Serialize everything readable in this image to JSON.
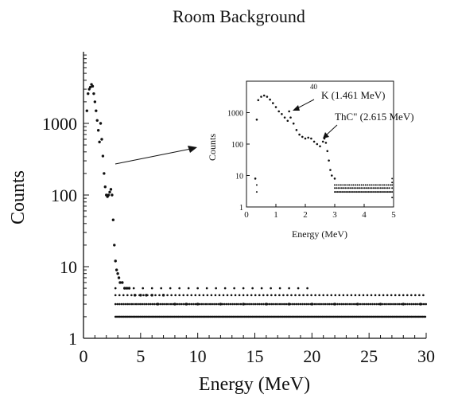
{
  "chart_data": [
    {
      "id": "main",
      "type": "scatter",
      "title": "Room Background",
      "xlabel": "Energy (MeV)",
      "ylabel": "Counts",
      "xlim": [
        0,
        30
      ],
      "ylim": [
        1,
        10000
      ],
      "y_scale": "log",
      "x_ticks": [
        0,
        5,
        10,
        15,
        20,
        25,
        30
      ],
      "y_ticks": [
        1,
        10,
        100,
        1000
      ],
      "y_tick_labels": [
        "1",
        "10",
        "100",
        "1000"
      ],
      "grid": false,
      "series": [
        {
          "values_description_free": true,
          "x": [
            0.3,
            0.4,
            0.5,
            0.6,
            0.7,
            0.8,
            0.9,
            1.0,
            1.1,
            1.2,
            1.3,
            1.4,
            1.5,
            1.6,
            1.7,
            1.8,
            1.9,
            2.0,
            2.1,
            2.2,
            2.3,
            2.4,
            2.5,
            2.6,
            2.7,
            2.8,
            2.9,
            3.0,
            3.1,
            3.2,
            3.4,
            3.6,
            3.8,
            4.0,
            4.5,
            5.0,
            5.5,
            6.0,
            6.5,
            7.0,
            8.0,
            9.0,
            10.0,
            12.0,
            14.0,
            16.0,
            18.0,
            20.0,
            22.0,
            24.0,
            26.0,
            28.0,
            29.5
          ],
          "y": [
            1500,
            2600,
            3000,
            3200,
            3500,
            3300,
            2600,
            2000,
            1500,
            1100,
            800,
            550,
            1000,
            600,
            350,
            200,
            130,
            100,
            95,
            100,
            110,
            120,
            100,
            45,
            20,
            12,
            9,
            8,
            7,
            6,
            6,
            5,
            5,
            5,
            4,
            4,
            4,
            4,
            3,
            4,
            3,
            3,
            3,
            3,
            3,
            3,
            3,
            3,
            3,
            3,
            3,
            3,
            3
          ]
        },
        {
          "floor_levels": [
            2,
            3,
            4,
            5
          ],
          "x_range": [
            2.8,
            30
          ]
        }
      ]
    },
    {
      "id": "inset",
      "type": "scatter",
      "xlabel": "Energy (MeV)",
      "ylabel": "Counts",
      "xlim": [
        0,
        5
      ],
      "ylim": [
        1,
        10000
      ],
      "y_scale": "log",
      "x_ticks": [
        0,
        1,
        2,
        3,
        4,
        5
      ],
      "y_ticks": [
        1,
        10,
        100,
        1000
      ],
      "y_tick_labels": [
        "1",
        "10",
        "100",
        "1000"
      ],
      "annotations": [
        "40 K (1.461 MeV)",
        "ThC\" (2.615 MeV)"
      ],
      "series": [
        {
          "x": [
            0.3,
            0.35,
            0.4,
            0.5,
            0.6,
            0.7,
            0.8,
            0.9,
            1.0,
            1.1,
            1.2,
            1.3,
            1.4,
            1.45,
            1.5,
            1.6,
            1.7,
            1.8,
            1.9,
            2.0,
            2.1,
            2.2,
            2.3,
            2.4,
            2.5,
            2.6,
            2.65,
            2.7,
            2.75,
            2.8,
            2.85,
            2.9,
            3.0
          ],
          "y": [
            8,
            600,
            2500,
            3200,
            3500,
            3200,
            2600,
            2000,
            1500,
            1100,
            900,
            700,
            550,
            1100,
            700,
            450,
            280,
            200,
            170,
            150,
            160,
            150,
            120,
            100,
            85,
            120,
            150,
            110,
            60,
            30,
            15,
            10,
            8
          ]
        }
      ]
    }
  ],
  "labels": {
    "title": "Room Background",
    "xlabel": "Energy (MeV)",
    "ylabel": "Counts",
    "inset_xlabel": "Energy (MeV)",
    "inset_ylabel": "Counts",
    "k40_superscript": "40",
    "k40_label": "K (1.461 MeV)",
    "thc_label": "ThC\" (2.615 MeV)"
  }
}
